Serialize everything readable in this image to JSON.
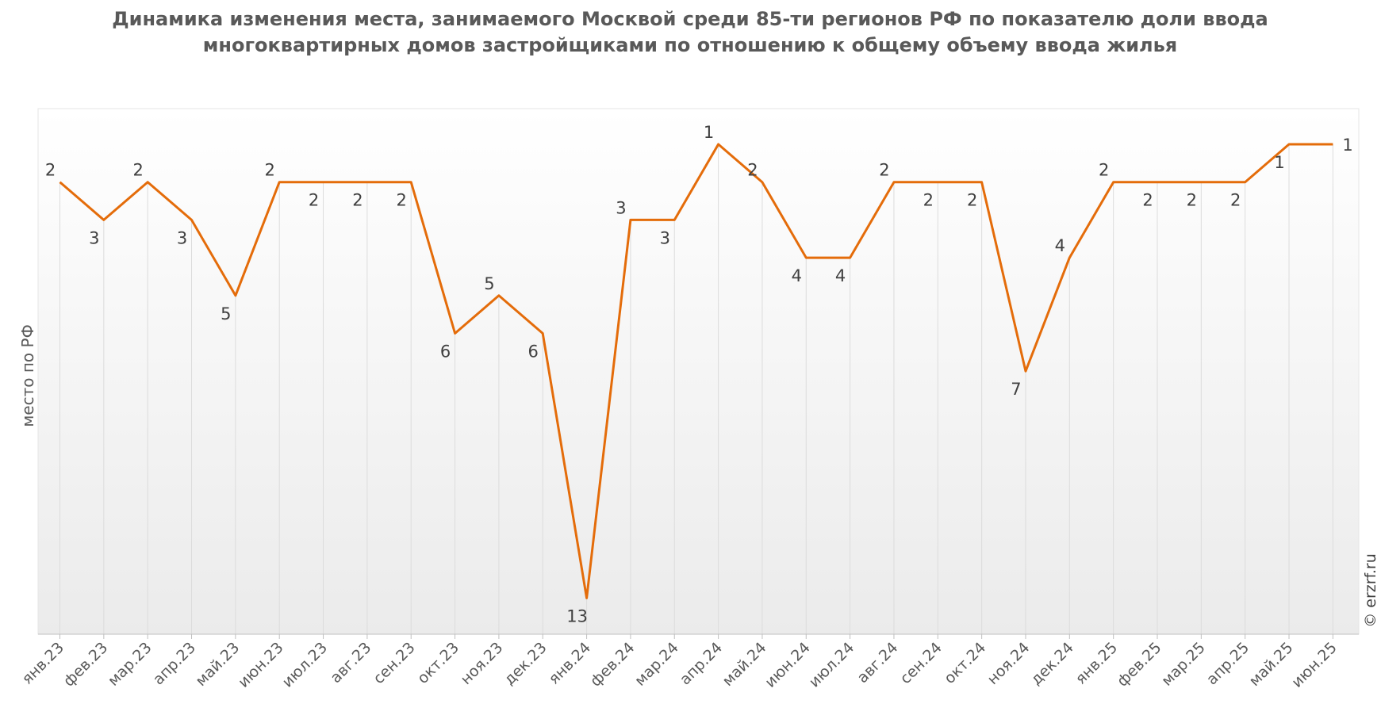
{
  "chart_data": {
    "type": "line",
    "title": "Динамика изменения места, занимаемого Москвой среди 85-ти регионов РФ по показателю доли ввода многоквартирных домов застройщиками по отношению к общему объему ввода жилья",
    "ylabel": "место по РФ",
    "xlabel": "",
    "credit": "© erzrf.ru",
    "y_inverted": true,
    "ylim": [
      0,
      14
    ],
    "grid": "vertical",
    "legend": "none",
    "line_color": "#E46C0A",
    "categories": [
      "янв.23",
      "фев.23",
      "мар.23",
      "апр.23",
      "май.23",
      "июн.23",
      "июл.23",
      "авг.23",
      "сен.23",
      "окт.23",
      "ноя.23",
      "дек.23",
      "янв.24",
      "фев.24",
      "мар.24",
      "апр.24",
      "май.24",
      "июн.24",
      "июл.24",
      "авг.24",
      "сен.24",
      "окт.24",
      "ноя.24",
      "дек.24",
      "янв.25",
      "фев.25",
      "мар.25",
      "апр.25",
      "май.25",
      "июн.25"
    ],
    "values": [
      2,
      3,
      2,
      3,
      5,
      2,
      2,
      2,
      2,
      6,
      5,
      6,
      13,
      3,
      3,
      1,
      2,
      4,
      4,
      2,
      2,
      2,
      7,
      4,
      2,
      2,
      2,
      2,
      1,
      1
    ],
    "label_position": [
      "above",
      "below",
      "above",
      "below",
      "below",
      "above",
      "below",
      "below",
      "below",
      "below",
      "above",
      "below",
      "below",
      "above",
      "below",
      "above",
      "above",
      "below",
      "below",
      "above",
      "below",
      "below",
      "below",
      "above",
      "above",
      "below",
      "below",
      "below",
      "below",
      "right"
    ]
  }
}
